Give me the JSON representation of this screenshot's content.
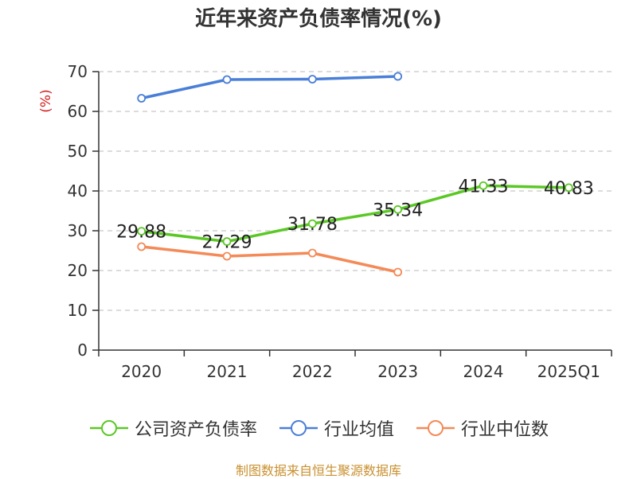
{
  "title": "近年来资产负债率情况(%)",
  "source_text": "制图数据来自恒生聚源数据库",
  "chart_data": {
    "type": "line",
    "title": "近年来资产负债率情况(%)",
    "ylabel": "(%)",
    "xlabel": "",
    "categories": [
      "2020",
      "2021",
      "2022",
      "2023",
      "2024",
      "2025Q1"
    ],
    "ylim": [
      0,
      70
    ],
    "yticks": [
      0,
      10,
      20,
      30,
      40,
      50,
      60,
      70
    ],
    "grid": "horizontal dashed",
    "legend_position": "bottom",
    "series": [
      {
        "name": "公司资产负债率",
        "color": "#5bc825",
        "values": [
          29.88,
          27.29,
          31.78,
          35.34,
          41.33,
          40.83
        ],
        "labels": [
          "29.88",
          "27.29",
          "31.78",
          "35.34",
          "41.33",
          "40.83"
        ]
      },
      {
        "name": "行业均值",
        "color": "#4a7fd8",
        "values": [
          63.3,
          68.0,
          68.1,
          68.8,
          null,
          null
        ]
      },
      {
        "name": "行业中位数",
        "color": "#f48a58",
        "values": [
          26.0,
          23.6,
          24.4,
          19.6,
          null,
          null
        ]
      }
    ]
  }
}
